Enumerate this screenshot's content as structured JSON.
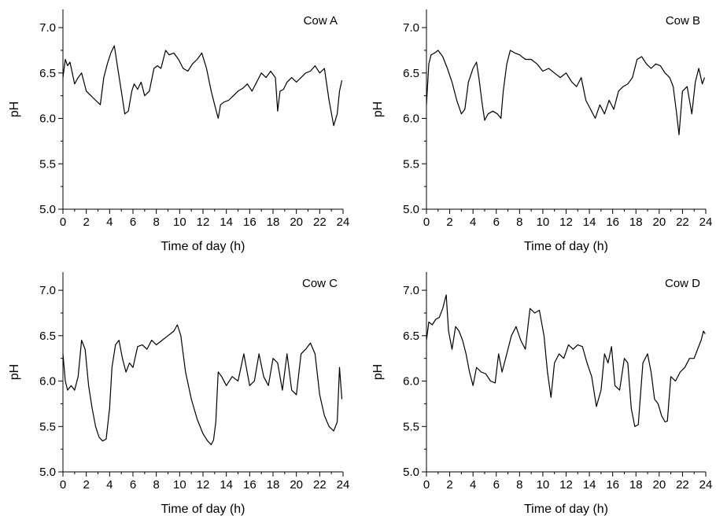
{
  "chart_data": [
    {
      "type": "line",
      "title": "Cow A",
      "xlabel": "Time of day (h)",
      "ylabel": "pH",
      "xlim": [
        0,
        24
      ],
      "ylim": [
        5.0,
        7.2
      ],
      "xticks": [
        0,
        2,
        4,
        6,
        8,
        10,
        12,
        14,
        16,
        18,
        20,
        22,
        24
      ],
      "yticks": [
        5.0,
        5.5,
        6.0,
        6.5,
        7.0
      ],
      "grid": false,
      "line_color": "#000000",
      "series": [
        {
          "x": [
            0.0,
            0.2,
            0.4,
            0.6,
            0.8,
            1.0,
            1.3,
            1.6,
            2.0,
            2.4,
            2.8,
            3.2,
            3.5,
            3.8,
            4.1,
            4.4,
            4.7,
            5.0,
            5.3,
            5.6,
            5.9,
            6.1,
            6.4,
            6.7,
            7.0,
            7.4,
            7.8,
            8.1,
            8.4,
            8.8,
            9.1,
            9.5,
            9.9,
            10.3,
            10.7,
            11.1,
            11.5,
            11.9,
            12.3,
            12.7,
            13.0,
            13.3,
            13.5,
            13.8,
            14.2,
            14.6,
            15.0,
            15.4,
            15.8,
            16.2,
            16.6,
            17.0,
            17.4,
            17.8,
            18.2,
            18.4,
            18.6,
            18.9,
            19.2,
            19.6,
            20.0,
            20.4,
            20.8,
            21.2,
            21.6,
            22.0,
            22.4,
            22.8,
            23.2,
            23.5,
            23.7,
            23.9
          ],
          "y": [
            6.45,
            6.65,
            6.58,
            6.62,
            6.5,
            6.38,
            6.45,
            6.5,
            6.3,
            6.25,
            6.2,
            6.15,
            6.45,
            6.6,
            6.72,
            6.8,
            6.55,
            6.3,
            6.05,
            6.08,
            6.3,
            6.38,
            6.32,
            6.4,
            6.25,
            6.3,
            6.55,
            6.58,
            6.55,
            6.75,
            6.7,
            6.72,
            6.65,
            6.55,
            6.52,
            6.6,
            6.65,
            6.72,
            6.55,
            6.3,
            6.15,
            6.0,
            6.15,
            6.18,
            6.2,
            6.25,
            6.3,
            6.33,
            6.38,
            6.3,
            6.4,
            6.5,
            6.45,
            6.52,
            6.45,
            6.08,
            6.3,
            6.32,
            6.4,
            6.45,
            6.4,
            6.45,
            6.5,
            6.52,
            6.58,
            6.5,
            6.55,
            6.2,
            5.92,
            6.05,
            6.3,
            6.42
          ]
        }
      ]
    },
    {
      "type": "line",
      "title": "Cow B",
      "xlabel": "Time of day (h)",
      "ylabel": "pH",
      "xlim": [
        0,
        24
      ],
      "ylim": [
        5.0,
        7.2
      ],
      "xticks": [
        0,
        2,
        4,
        6,
        8,
        10,
        12,
        14,
        16,
        18,
        20,
        22,
        24
      ],
      "yticks": [
        5.0,
        5.5,
        6.0,
        6.5,
        7.0
      ],
      "grid": false,
      "line_color": "#000000",
      "series": [
        {
          "x": [
            0.0,
            0.2,
            0.4,
            0.7,
            1.0,
            1.4,
            1.8,
            2.2,
            2.6,
            3.0,
            3.3,
            3.6,
            4.0,
            4.3,
            4.5,
            4.8,
            5.0,
            5.3,
            5.7,
            6.1,
            6.4,
            6.6,
            6.9,
            7.2,
            7.6,
            8.0,
            8.5,
            9.0,
            9.5,
            10.0,
            10.5,
            11.0,
            11.5,
            12.0,
            12.5,
            12.9,
            13.3,
            13.7,
            14.1,
            14.5,
            14.9,
            15.3,
            15.7,
            16.1,
            16.5,
            16.9,
            17.3,
            17.7,
            18.1,
            18.5,
            18.9,
            19.3,
            19.7,
            20.1,
            20.5,
            20.9,
            21.2,
            21.5,
            21.7,
            22.0,
            22.4,
            22.8,
            23.1,
            23.4,
            23.7,
            23.9
          ],
          "y": [
            6.15,
            6.6,
            6.7,
            6.72,
            6.75,
            6.68,
            6.55,
            6.4,
            6.2,
            6.05,
            6.1,
            6.4,
            6.55,
            6.62,
            6.45,
            6.15,
            5.98,
            6.05,
            6.08,
            6.05,
            6.0,
            6.3,
            6.6,
            6.75,
            6.72,
            6.7,
            6.65,
            6.65,
            6.6,
            6.52,
            6.55,
            6.5,
            6.45,
            6.5,
            6.4,
            6.35,
            6.45,
            6.2,
            6.1,
            6.0,
            6.15,
            6.05,
            6.2,
            6.1,
            6.3,
            6.35,
            6.38,
            6.45,
            6.65,
            6.68,
            6.6,
            6.55,
            6.6,
            6.58,
            6.5,
            6.45,
            6.35,
            6.05,
            5.82,
            6.3,
            6.35,
            6.05,
            6.4,
            6.55,
            6.38,
            6.45
          ]
        }
      ]
    },
    {
      "type": "line",
      "title": "Cow C",
      "xlabel": "Time of day (h)",
      "ylabel": "pH",
      "xlim": [
        0,
        24
      ],
      "ylim": [
        5.0,
        7.2
      ],
      "xticks": [
        0,
        2,
        4,
        6,
        8,
        10,
        12,
        14,
        16,
        18,
        20,
        22,
        24
      ],
      "yticks": [
        5.0,
        5.5,
        6.0,
        6.5,
        7.0
      ],
      "grid": false,
      "line_color": "#000000",
      "series": [
        {
          "x": [
            0.0,
            0.2,
            0.4,
            0.7,
            1.0,
            1.3,
            1.6,
            1.9,
            2.2,
            2.5,
            2.8,
            3.1,
            3.4,
            3.7,
            4.0,
            4.2,
            4.5,
            4.8,
            5.1,
            5.4,
            5.7,
            6.0,
            6.4,
            6.8,
            7.2,
            7.6,
            8.0,
            8.5,
            9.0,
            9.5,
            9.8,
            10.1,
            10.5,
            11.0,
            11.5,
            12.0,
            12.4,
            12.7,
            12.9,
            13.1,
            13.3,
            13.6,
            14.0,
            14.5,
            15.0,
            15.5,
            16.0,
            16.4,
            16.8,
            17.2,
            17.6,
            18.0,
            18.4,
            18.8,
            19.2,
            19.6,
            20.0,
            20.4,
            20.8,
            21.2,
            21.6,
            22.0,
            22.4,
            22.8,
            23.2,
            23.5,
            23.7,
            23.9
          ],
          "y": [
            6.3,
            6.0,
            5.9,
            5.95,
            5.9,
            6.05,
            6.45,
            6.35,
            5.95,
            5.7,
            5.5,
            5.38,
            5.34,
            5.36,
            5.7,
            6.15,
            6.4,
            6.45,
            6.25,
            6.1,
            6.2,
            6.15,
            6.38,
            6.4,
            6.35,
            6.45,
            6.4,
            6.45,
            6.5,
            6.55,
            6.62,
            6.5,
            6.1,
            5.8,
            5.58,
            5.42,
            5.34,
            5.3,
            5.35,
            5.55,
            6.1,
            6.05,
            5.95,
            6.05,
            6.0,
            6.3,
            5.95,
            6.0,
            6.3,
            6.05,
            5.95,
            6.25,
            6.2,
            5.9,
            6.3,
            5.9,
            5.85,
            6.3,
            6.35,
            6.42,
            6.3,
            5.85,
            5.62,
            5.5,
            5.45,
            5.55,
            6.15,
            5.8
          ]
        }
      ]
    },
    {
      "type": "line",
      "title": "Cow D",
      "xlabel": "Time of day (h)",
      "ylabel": "pH",
      "xlim": [
        0,
        24
      ],
      "ylim": [
        5.0,
        7.2
      ],
      "xticks": [
        0,
        2,
        4,
        6,
        8,
        10,
        12,
        14,
        16,
        18,
        20,
        22,
        24
      ],
      "yticks": [
        5.0,
        5.5,
        6.0,
        6.5,
        7.0
      ],
      "grid": false,
      "line_color": "#000000",
      "series": [
        {
          "x": [
            0.0,
            0.2,
            0.5,
            0.8,
            1.1,
            1.4,
            1.7,
            1.9,
            2.2,
            2.5,
            2.8,
            3.1,
            3.4,
            3.7,
            4.0,
            4.3,
            4.7,
            5.1,
            5.5,
            5.9,
            6.2,
            6.5,
            6.9,
            7.3,
            7.7,
            8.1,
            8.5,
            8.9,
            9.3,
            9.7,
            10.1,
            10.4,
            10.7,
            11.0,
            11.4,
            11.8,
            12.2,
            12.6,
            13.0,
            13.4,
            13.8,
            14.2,
            14.6,
            15.0,
            15.3,
            15.6,
            15.9,
            16.2,
            16.6,
            17.0,
            17.3,
            17.6,
            17.9,
            18.2,
            18.6,
            19.0,
            19.3,
            19.6,
            19.9,
            20.2,
            20.5,
            20.7,
            21.0,
            21.4,
            21.8,
            22.2,
            22.6,
            23.0,
            23.3,
            23.6,
            23.8,
            23.95
          ],
          "y": [
            6.45,
            6.65,
            6.62,
            6.68,
            6.7,
            6.8,
            6.95,
            6.55,
            6.35,
            6.6,
            6.55,
            6.45,
            6.3,
            6.1,
            5.95,
            6.15,
            6.1,
            6.08,
            6.0,
            5.98,
            6.3,
            6.1,
            6.3,
            6.5,
            6.6,
            6.45,
            6.35,
            6.8,
            6.75,
            6.78,
            6.5,
            6.1,
            5.82,
            6.2,
            6.3,
            6.25,
            6.4,
            6.35,
            6.4,
            6.38,
            6.2,
            6.05,
            5.72,
            5.9,
            6.3,
            6.2,
            6.38,
            5.95,
            5.9,
            6.25,
            6.2,
            5.7,
            5.5,
            5.52,
            6.2,
            6.3,
            6.1,
            5.8,
            5.75,
            5.62,
            5.55,
            5.56,
            6.05,
            6.0,
            6.1,
            6.15,
            6.25,
            6.25,
            6.35,
            6.45,
            6.55,
            6.52
          ]
        }
      ]
    }
  ]
}
